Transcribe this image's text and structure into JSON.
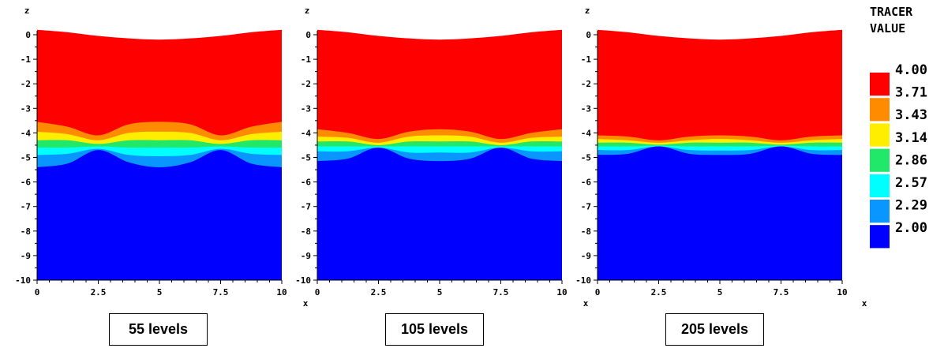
{
  "legend": {
    "title_lines": [
      "TRACER",
      "VALUE"
    ],
    "levels": [
      "4.00",
      "3.71",
      "3.43",
      "3.14",
      "2.86",
      "2.57",
      "2.29",
      "2.00"
    ],
    "colors": [
      "#ff0000",
      "#ff8c00",
      "#ffee00",
      "#22e86a",
      "#00ffff",
      "#0a96ff",
      "#0000ff"
    ]
  },
  "chart_data": [
    {
      "type": "contour",
      "caption": "55 levels",
      "xlabel": "x",
      "ylabel": "z",
      "xlim": [
        0,
        10
      ],
      "ylim": [
        -10,
        0
      ],
      "xticks": [
        "0",
        "2.5",
        "5",
        "7.5",
        "10"
      ],
      "yticks": [
        "0",
        "-1",
        "-2",
        "-3",
        "-4",
        "-5",
        "-6",
        "-7",
        "-8",
        "-9",
        "-10"
      ],
      "x": [
        0,
        1.25,
        2.5,
        3.75,
        5,
        6.25,
        7.5,
        8.75,
        10
      ],
      "surface_z": [
        0.2,
        0.1,
        -0.05,
        -0.15,
        -0.2,
        -0.15,
        -0.05,
        0.1,
        0.2
      ],
      "band_boundaries_z": [
        [
          -3.55,
          -3.75,
          -4.1,
          -3.65,
          -3.55,
          -3.65,
          -4.1,
          -3.75,
          -3.55
        ],
        [
          -3.95,
          -4.05,
          -4.3,
          -4.0,
          -3.95,
          -4.0,
          -4.3,
          -4.05,
          -3.95
        ],
        [
          -4.3,
          -4.3,
          -4.45,
          -4.3,
          -4.3,
          -4.3,
          -4.45,
          -4.3,
          -4.3
        ],
        [
          -4.6,
          -4.6,
          -4.55,
          -4.6,
          -4.6,
          -4.6,
          -4.55,
          -4.6,
          -4.6
        ],
        [
          -4.9,
          -4.85,
          -4.65,
          -4.9,
          -4.95,
          -4.9,
          -4.65,
          -4.85,
          -4.9
        ],
        [
          -5.4,
          -5.25,
          -4.7,
          -5.2,
          -5.4,
          -5.2,
          -4.7,
          -5.25,
          -5.4
        ]
      ]
    },
    {
      "type": "contour",
      "caption": "105 levels",
      "xlabel": "x",
      "ylabel": "z",
      "xlim": [
        0,
        10
      ],
      "ylim": [
        -10,
        0
      ],
      "xticks": [
        "0",
        "2.5",
        "5",
        "7.5",
        "10"
      ],
      "yticks": [
        "0",
        "-1",
        "-2",
        "-3",
        "-4",
        "-5",
        "-6",
        "-7",
        "-8",
        "-9",
        "-10"
      ],
      "x": [
        0,
        1.25,
        2.5,
        3.75,
        5,
        6.25,
        7.5,
        8.75,
        10
      ],
      "surface_z": [
        0.2,
        0.1,
        -0.05,
        -0.15,
        -0.2,
        -0.15,
        -0.05,
        0.1,
        0.2
      ],
      "band_boundaries_z": [
        [
          -3.85,
          -4.0,
          -4.25,
          -3.95,
          -3.85,
          -3.95,
          -4.25,
          -4.0,
          -3.85
        ],
        [
          -4.15,
          -4.2,
          -4.4,
          -4.15,
          -4.1,
          -4.15,
          -4.4,
          -4.2,
          -4.15
        ],
        [
          -4.35,
          -4.35,
          -4.5,
          -4.35,
          -4.35,
          -4.35,
          -4.5,
          -4.35,
          -4.35
        ],
        [
          -4.55,
          -4.55,
          -4.55,
          -4.55,
          -4.55,
          -4.55,
          -4.55,
          -4.55,
          -4.55
        ],
        [
          -4.75,
          -4.75,
          -4.6,
          -4.8,
          -4.8,
          -4.8,
          -4.6,
          -4.75,
          -4.75
        ],
        [
          -5.15,
          -5.05,
          -4.6,
          -5.05,
          -5.15,
          -5.05,
          -4.6,
          -5.05,
          -5.15
        ]
      ]
    },
    {
      "type": "contour",
      "caption": "205 levels",
      "xlabel": "x",
      "ylabel": "z",
      "xlim": [
        0,
        10
      ],
      "ylim": [
        -10,
        0
      ],
      "xticks": [
        "0",
        "2.5",
        "5",
        "7.5",
        "10"
      ],
      "yticks": [
        "0",
        "-1",
        "-2",
        "-3",
        "-4",
        "-5",
        "-6",
        "-7",
        "-8",
        "-9",
        "-10"
      ],
      "x": [
        0,
        1.25,
        2.5,
        3.75,
        5,
        6.25,
        7.5,
        8.75,
        10
      ],
      "surface_z": [
        0.2,
        0.1,
        -0.05,
        -0.15,
        -0.2,
        -0.15,
        -0.05,
        0.1,
        0.2
      ],
      "band_boundaries_z": [
        [
          -4.1,
          -4.15,
          -4.3,
          -4.15,
          -4.1,
          -4.15,
          -4.3,
          -4.15,
          -4.1
        ],
        [
          -4.25,
          -4.3,
          -4.4,
          -4.3,
          -4.25,
          -4.3,
          -4.4,
          -4.3,
          -4.25
        ],
        [
          -4.4,
          -4.4,
          -4.48,
          -4.4,
          -4.4,
          -4.4,
          -4.48,
          -4.4,
          -4.4
        ],
        [
          -4.55,
          -4.55,
          -4.52,
          -4.55,
          -4.55,
          -4.55,
          -4.52,
          -4.55,
          -4.55
        ],
        [
          -4.7,
          -4.7,
          -4.55,
          -4.7,
          -4.72,
          -4.7,
          -4.55,
          -4.7,
          -4.7
        ],
        [
          -4.9,
          -4.85,
          -4.55,
          -4.85,
          -4.9,
          -4.85,
          -4.55,
          -4.85,
          -4.9
        ]
      ]
    }
  ]
}
